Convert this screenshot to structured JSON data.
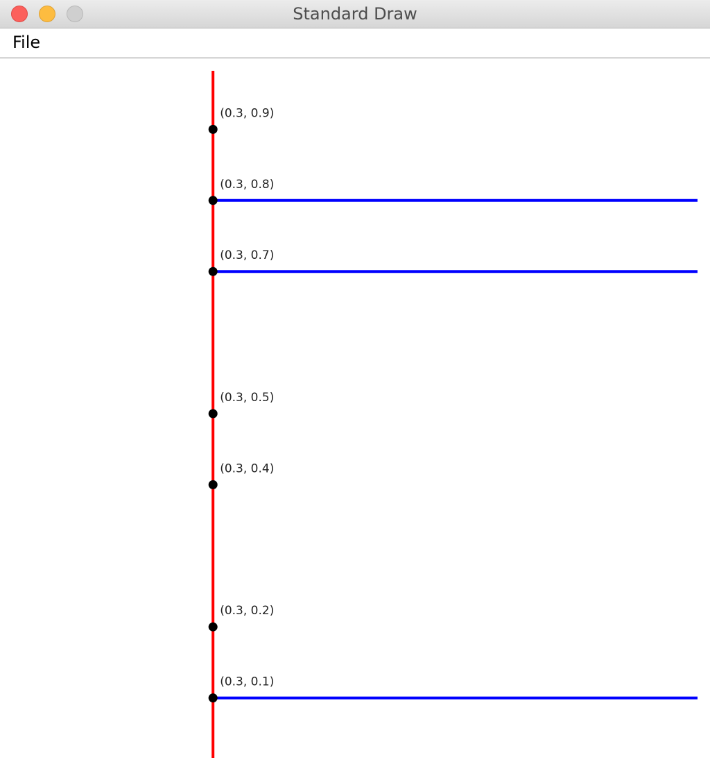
{
  "window": {
    "title": "Standard Draw"
  },
  "menu": {
    "items": [
      "File"
    ]
  },
  "colors": {
    "vertical_line": "#ff0000",
    "horizontal_line": "#0000ff",
    "points": "#000000"
  },
  "chart_data": {
    "type": "scatter",
    "xlim": [
      0,
      1
    ],
    "ylim": [
      0,
      1
    ],
    "vertical_line": {
      "x": 0.3,
      "y_range": [
        0,
        1
      ]
    },
    "horizontal_lines": [
      {
        "y": 0.8,
        "x_range": [
          0.3,
          1
        ]
      },
      {
        "y": 0.7,
        "x_range": [
          0.3,
          1
        ]
      },
      {
        "y": 0.1,
        "x_range": [
          0.3,
          1
        ]
      }
    ],
    "points": [
      {
        "x": 0.3,
        "y": 0.9,
        "label": "(0.3, 0.9)"
      },
      {
        "x": 0.3,
        "y": 0.8,
        "label": "(0.3, 0.8)"
      },
      {
        "x": 0.3,
        "y": 0.7,
        "label": "(0.3, 0.7)"
      },
      {
        "x": 0.3,
        "y": 0.5,
        "label": "(0.3, 0.5)"
      },
      {
        "x": 0.3,
        "y": 0.4,
        "label": "(0.3, 0.4)"
      },
      {
        "x": 0.3,
        "y": 0.2,
        "label": "(0.3, 0.2)"
      },
      {
        "x": 0.3,
        "y": 0.1,
        "label": "(0.3, 0.1)"
      }
    ]
  }
}
